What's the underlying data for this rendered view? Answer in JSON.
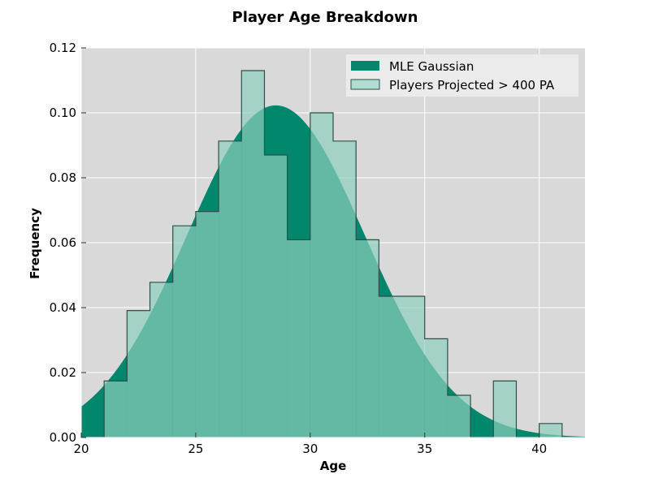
{
  "chart_data": {
    "type": "histogram",
    "title": "Player Age Breakdown",
    "xlabel": "Age",
    "ylabel": "Frequency",
    "xlim": [
      20,
      42
    ],
    "ylim": [
      0,
      0.12
    ],
    "x_ticks": [
      20,
      25,
      30,
      35,
      40
    ],
    "y_ticks": [
      0.0,
      0.02,
      0.04,
      0.06,
      0.08,
      0.1,
      0.12
    ],
    "y_tick_labels": [
      "0.00",
      "0.02",
      "0.04",
      "0.06",
      "0.08",
      "0.10",
      "0.12"
    ],
    "grid": true,
    "legend_position": "top-right",
    "series": [
      {
        "name": "MLE Gaussian",
        "kind": "gaussian",
        "mean": 28.5,
        "std": 3.9,
        "x_range": [
          20,
          42
        ],
        "color": "#00876c"
      },
      {
        "name": "Players Projected > 400 PA",
        "kind": "histogram",
        "bins": [
          {
            "start": 21,
            "end": 22,
            "value": 0.0174
          },
          {
            "start": 22,
            "end": 23,
            "value": 0.0391
          },
          {
            "start": 23,
            "end": 24,
            "value": 0.0478
          },
          {
            "start": 24,
            "end": 25,
            "value": 0.0652
          },
          {
            "start": 25,
            "end": 26,
            "value": 0.0696
          },
          {
            "start": 26,
            "end": 27,
            "value": 0.0913
          },
          {
            "start": 27,
            "end": 28,
            "value": 0.113
          },
          {
            "start": 28,
            "end": 29,
            "value": 0.087
          },
          {
            "start": 29,
            "end": 30,
            "value": 0.0609
          },
          {
            "start": 30,
            "end": 31,
            "value": 0.1
          },
          {
            "start": 31,
            "end": 32,
            "value": 0.0913
          },
          {
            "start": 32,
            "end": 33,
            "value": 0.0609
          },
          {
            "start": 33,
            "end": 34,
            "value": 0.0435
          },
          {
            "start": 34,
            "end": 35,
            "value": 0.0435
          },
          {
            "start": 35,
            "end": 36,
            "value": 0.0304
          },
          {
            "start": 36,
            "end": 37,
            "value": 0.013
          },
          {
            "start": 37,
            "end": 38,
            "value": 0.0
          },
          {
            "start": 38,
            "end": 39,
            "value": 0.0174
          },
          {
            "start": 39,
            "end": 40,
            "value": 0.0
          },
          {
            "start": 40,
            "end": 41,
            "value": 0.0043
          }
        ],
        "fill_color": "#8ecebd",
        "fill_opacity": 0.7,
        "edge_color": "#2f4f48"
      }
    ]
  }
}
